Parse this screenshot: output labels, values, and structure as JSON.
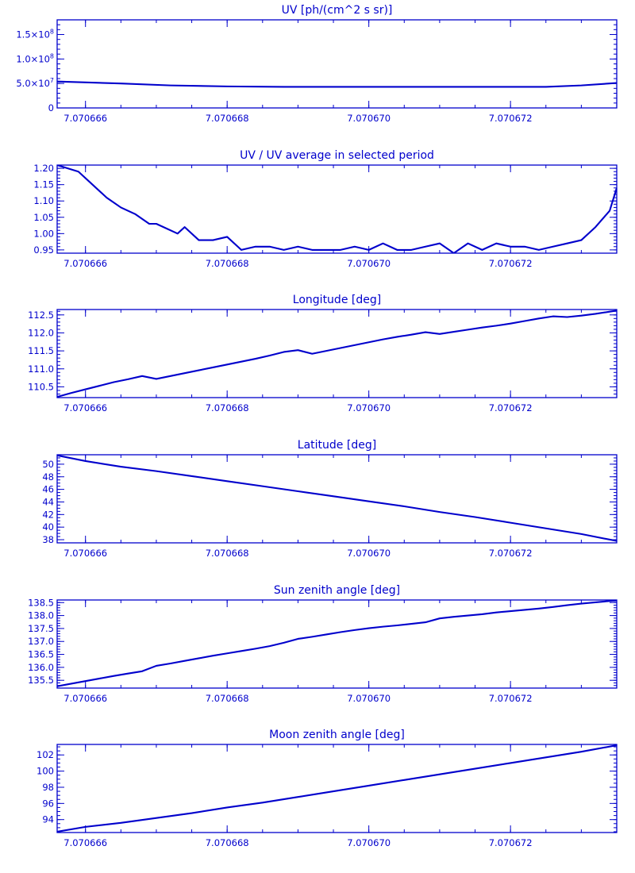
{
  "colors": {
    "ink": "#0000cc",
    "background": "#ffffff"
  },
  "chart_data": [
    {
      "type": "line",
      "title": "UV [ph/(cm^2 s sr)]",
      "xlim": [
        7.0706656,
        7.0706735
      ],
      "ylim": [
        0,
        180000000.0
      ],
      "xticks": [
        7.070666,
        7.070668,
        7.07067,
        7.070672
      ],
      "xtick_labels": [
        "7.070666",
        "7.070668",
        "7.070670",
        "7.070672"
      ],
      "xminor": 5e-07,
      "yticks": [
        0,
        50000000.0,
        100000000.0,
        150000000.0
      ],
      "ytick_labels": [
        {
          "m": "0",
          "e": ""
        },
        {
          "m": "5.0×10",
          "e": "7"
        },
        {
          "m": "1.0×10",
          "e": "8"
        },
        {
          "m": "1.5×10",
          "e": "8"
        }
      ],
      "yminor": 10000000.0,
      "series": [
        {
          "x": [
            7.0706656,
            7.0706665,
            7.0706672,
            7.070668,
            7.0706688,
            7.0706695,
            7.0706702,
            7.070671,
            7.0706718,
            7.0706725,
            7.070673,
            7.0706735
          ],
          "y": [
            54000000.0,
            50000000.0,
            46000000.0,
            44000000.0,
            43000000.0,
            43000000.0,
            43000000.0,
            43000000.0,
            43000000.0,
            43000000.0,
            46000000.0,
            51000000.0
          ]
        }
      ]
    },
    {
      "type": "line",
      "title": "UV / UV average in selected period",
      "xlim": [
        7.0706656,
        7.0706735
      ],
      "ylim": [
        0.94,
        1.21
      ],
      "xticks": [
        7.070666,
        7.070668,
        7.07067,
        7.070672
      ],
      "xtick_labels": [
        "7.070666",
        "7.070668",
        "7.070670",
        "7.070672"
      ],
      "xminor": 5e-07,
      "yticks": [
        0.95,
        1.0,
        1.05,
        1.1,
        1.15,
        1.2
      ],
      "ytick_labels": [
        {
          "m": "0.95",
          "e": ""
        },
        {
          "m": "1.00",
          "e": ""
        },
        {
          "m": "1.05",
          "e": ""
        },
        {
          "m": "1.10",
          "e": ""
        },
        {
          "m": "1.15",
          "e": ""
        },
        {
          "m": "1.20",
          "e": ""
        }
      ],
      "yminor": 0.01,
      "series": [
        {
          "x": [
            7.0706656,
            7.0706659,
            7.0706661,
            7.0706663,
            7.0706665,
            7.0706667,
            7.0706669,
            7.070667,
            7.0706673,
            7.0706674,
            7.0706676,
            7.0706678,
            7.070668,
            7.0706682,
            7.0706684,
            7.0706686,
            7.0706688,
            7.070669,
            7.0706692,
            7.0706694,
            7.0706696,
            7.0706698,
            7.07067,
            7.0706702,
            7.0706704,
            7.0706706,
            7.0706708,
            7.070671,
            7.0706712,
            7.0706714,
            7.0706716,
            7.0706718,
            7.070672,
            7.0706722,
            7.0706724,
            7.0706726,
            7.0706728,
            7.070673,
            7.0706732,
            7.0706734,
            7.0706735
          ],
          "y": [
            1.21,
            1.19,
            1.15,
            1.11,
            1.08,
            1.06,
            1.03,
            1.03,
            1.0,
            1.02,
            0.98,
            0.98,
            0.99,
            0.95,
            0.96,
            0.96,
            0.95,
            0.96,
            0.95,
            0.95,
            0.95,
            0.96,
            0.95,
            0.97,
            0.95,
            0.95,
            0.96,
            0.97,
            0.94,
            0.97,
            0.95,
            0.97,
            0.96,
            0.96,
            0.95,
            0.96,
            0.97,
            0.98,
            1.02,
            1.07,
            1.14
          ]
        }
      ]
    },
    {
      "type": "line",
      "title": "Longitude [deg]",
      "xlim": [
        7.0706656,
        7.0706735
      ],
      "ylim": [
        110.2,
        112.65
      ],
      "xticks": [
        7.070666,
        7.070668,
        7.07067,
        7.070672
      ],
      "xtick_labels": [
        "7.070666",
        "7.070668",
        "7.070670",
        "7.070672"
      ],
      "xminor": 5e-07,
      "yticks": [
        110.5,
        111.0,
        111.5,
        112.0,
        112.5
      ],
      "ytick_labels": [
        {
          "m": "110.5",
          "e": ""
        },
        {
          "m": "111.0",
          "e": ""
        },
        {
          "m": "111.5",
          "e": ""
        },
        {
          "m": "112.0",
          "e": ""
        },
        {
          "m": "112.5",
          "e": ""
        }
      ],
      "yminor": 0.1,
      "series": [
        {
          "x": [
            7.0706656,
            7.0706658,
            7.070666,
            7.0706662,
            7.0706664,
            7.0706666,
            7.0706668,
            7.070667,
            7.0706672,
            7.0706674,
            7.0706676,
            7.0706678,
            7.070668,
            7.0706682,
            7.0706684,
            7.0706686,
            7.0706688,
            7.070669,
            7.0706692,
            7.0706694,
            7.0706696,
            7.0706698,
            7.07067,
            7.0706702,
            7.0706704,
            7.0706706,
            7.0706708,
            7.070671,
            7.0706712,
            7.0706714,
            7.0706716,
            7.0706718,
            7.070672,
            7.0706722,
            7.0706724,
            7.0706726,
            7.0706728,
            7.070673,
            7.0706732,
            7.0706734,
            7.0706735
          ],
          "y": [
            110.22,
            110.33,
            110.43,
            110.53,
            110.63,
            110.71,
            110.8,
            110.72,
            110.8,
            110.88,
            110.96,
            111.04,
            111.12,
            111.2,
            111.28,
            111.37,
            111.47,
            111.52,
            111.42,
            111.5,
            111.58,
            111.66,
            111.74,
            111.82,
            111.89,
            111.95,
            112.02,
            111.97,
            112.03,
            112.09,
            112.15,
            112.2,
            112.26,
            112.33,
            112.4,
            112.46,
            112.44,
            112.48,
            112.53,
            112.59,
            112.62
          ]
        }
      ]
    },
    {
      "type": "line",
      "title": "Latitude [deg]",
      "xlim": [
        7.0706656,
        7.0706735
      ],
      "ylim": [
        37.5,
        51.5
      ],
      "xticks": [
        7.070666,
        7.070668,
        7.07067,
        7.070672
      ],
      "xtick_labels": [
        "7.070666",
        "7.070668",
        "7.070670",
        "7.070672"
      ],
      "xminor": 5e-07,
      "yticks": [
        38,
        40,
        42,
        44,
        46,
        48,
        50
      ],
      "ytick_labels": [
        {
          "m": "38",
          "e": ""
        },
        {
          "m": "40",
          "e": ""
        },
        {
          "m": "42",
          "e": ""
        },
        {
          "m": "44",
          "e": ""
        },
        {
          "m": "46",
          "e": ""
        },
        {
          "m": "48",
          "e": ""
        },
        {
          "m": "50",
          "e": ""
        }
      ],
      "yminor": 0.5,
      "series": [
        {
          "x": [
            7.0706656,
            7.070666,
            7.0706665,
            7.070667,
            7.0706675,
            7.070668,
            7.0706685,
            7.070669,
            7.0706695,
            7.07067,
            7.0706705,
            7.070671,
            7.0706715,
            7.070672,
            7.0706725,
            7.070673,
            7.0706735
          ],
          "y": [
            51.4,
            50.5,
            49.6,
            48.9,
            48.1,
            47.3,
            46.5,
            45.7,
            44.9,
            44.1,
            43.3,
            42.4,
            41.6,
            40.7,
            39.8,
            38.9,
            37.8
          ]
        }
      ]
    },
    {
      "type": "line",
      "title": "Sun zenith angle [deg]",
      "xlim": [
        7.0706656,
        7.0706735
      ],
      "ylim": [
        135.2,
        138.6
      ],
      "xticks": [
        7.070666,
        7.070668,
        7.07067,
        7.070672
      ],
      "xtick_labels": [
        "7.070666",
        "7.070668",
        "7.070670",
        "7.070672"
      ],
      "xminor": 5e-07,
      "yticks": [
        135.5,
        136.0,
        136.5,
        137.0,
        137.5,
        138.0,
        138.5
      ],
      "ytick_labels": [
        {
          "m": "135.5",
          "e": ""
        },
        {
          "m": "136.0",
          "e": ""
        },
        {
          "m": "136.5",
          "e": ""
        },
        {
          "m": "137.0",
          "e": ""
        },
        {
          "m": "137.5",
          "e": ""
        },
        {
          "m": "138.0",
          "e": ""
        },
        {
          "m": "138.5",
          "e": ""
        }
      ],
      "yminor": 0.1,
      "series": [
        {
          "x": [
            7.0706656,
            7.0706658,
            7.070666,
            7.0706662,
            7.0706664,
            7.0706666,
            7.0706668,
            7.070667,
            7.0706672,
            7.0706674,
            7.0706676,
            7.0706678,
            7.070668,
            7.0706682,
            7.0706684,
            7.0706686,
            7.0706688,
            7.070669,
            7.0706692,
            7.0706694,
            7.0706696,
            7.0706698,
            7.07067,
            7.0706702,
            7.0706704,
            7.0706706,
            7.0706708,
            7.070671,
            7.0706712,
            7.0706714,
            7.0706716,
            7.0706718,
            7.070672,
            7.0706722,
            7.0706724,
            7.0706726,
            7.0706728,
            7.070673,
            7.0706732,
            7.0706734,
            7.0706735
          ],
          "y": [
            135.27,
            135.37,
            135.47,
            135.57,
            135.67,
            135.76,
            135.85,
            136.06,
            136.15,
            136.25,
            136.35,
            136.45,
            136.54,
            136.63,
            136.72,
            136.82,
            136.95,
            137.1,
            137.18,
            137.27,
            137.36,
            137.44,
            137.51,
            137.57,
            137.62,
            137.68,
            137.74,
            137.89,
            137.95,
            138.0,
            138.05,
            138.12,
            138.17,
            138.22,
            138.27,
            138.33,
            138.4,
            138.46,
            138.51,
            138.56,
            138.58
          ]
        }
      ]
    },
    {
      "type": "line",
      "title": "Moon zenith angle [deg]",
      "xlim": [
        7.0706656,
        7.0706735
      ],
      "ylim": [
        92.4,
        103.3
      ],
      "xticks": [
        7.070666,
        7.070668,
        7.07067,
        7.070672
      ],
      "xtick_labels": [
        "7.070666",
        "7.070668",
        "7.070670",
        "7.070672"
      ],
      "xminor": 5e-07,
      "yticks": [
        94,
        96,
        98,
        100,
        102
      ],
      "ytick_labels": [
        {
          "m": "94",
          "e": ""
        },
        {
          "m": "96",
          "e": ""
        },
        {
          "m": "98",
          "e": ""
        },
        {
          "m": "100",
          "e": ""
        },
        {
          "m": "102",
          "e": ""
        }
      ],
      "yminor": 0.5,
      "series": [
        {
          "x": [
            7.0706656,
            7.070666,
            7.0706665,
            7.070667,
            7.0706675,
            7.070668,
            7.0706685,
            7.070669,
            7.0706695,
            7.07067,
            7.0706705,
            7.070671,
            7.0706715,
            7.070672,
            7.0706725,
            7.070673,
            7.0706735
          ],
          "y": [
            92.5,
            93.1,
            93.6,
            94.2,
            94.8,
            95.5,
            96.1,
            96.8,
            97.5,
            98.2,
            98.9,
            99.6,
            100.3,
            101.0,
            101.7,
            102.4,
            103.2
          ]
        }
      ]
    }
  ]
}
